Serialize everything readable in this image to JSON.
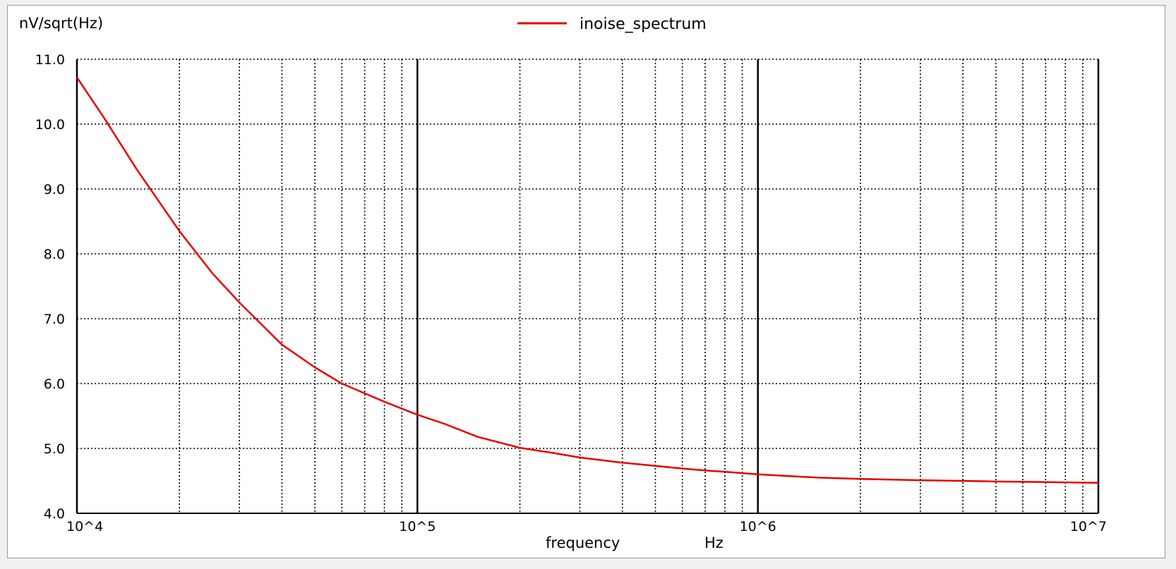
{
  "chart_data": {
    "type": "line",
    "ylabel": "nV/sqrt(Hz)",
    "xlabel": "frequency",
    "xunit": "Hz",
    "xscale": "log",
    "xlim": [
      10000,
      10000000
    ],
    "ylim": [
      4.0,
      11.0
    ],
    "x_ticks": [
      {
        "value": 10000,
        "label": "10^4"
      },
      {
        "value": 100000,
        "label": "10^5"
      },
      {
        "value": 1000000,
        "label": "10^6"
      },
      {
        "value": 10000000,
        "label": "10^7"
      }
    ],
    "y_ticks": [
      {
        "value": 4.0,
        "label": "4.0"
      },
      {
        "value": 5.0,
        "label": "5.0"
      },
      {
        "value": 6.0,
        "label": "6.0"
      },
      {
        "value": 7.0,
        "label": "7.0"
      },
      {
        "value": 8.0,
        "label": "8.0"
      },
      {
        "value": 9.0,
        "label": "9.0"
      },
      {
        "value": 10.0,
        "label": "10.0"
      },
      {
        "value": 11.0,
        "label": "11.0"
      }
    ],
    "grid": true,
    "legend_position": "top-center",
    "series": [
      {
        "name": "inoise_spectrum",
        "color": "#e60000",
        "x": [
          10000,
          12000,
          15000,
          20000,
          25000,
          30000,
          40000,
          50000,
          60000,
          70000,
          80000,
          100000,
          120000,
          150000,
          200000,
          250000,
          300000,
          400000,
          500000,
          600000,
          700000,
          800000,
          1000000,
          1500000,
          2000000,
          3000000,
          4000000,
          5000000,
          7000000,
          10000000
        ],
        "y": [
          10.72,
          10.1,
          9.3,
          8.35,
          7.7,
          7.25,
          6.6,
          6.25,
          6.0,
          5.85,
          5.72,
          5.52,
          5.38,
          5.18,
          5.01,
          4.93,
          4.86,
          4.78,
          4.73,
          4.69,
          4.66,
          4.64,
          4.6,
          4.55,
          4.53,
          4.51,
          4.5,
          4.49,
          4.48,
          4.47
        ]
      }
    ]
  }
}
